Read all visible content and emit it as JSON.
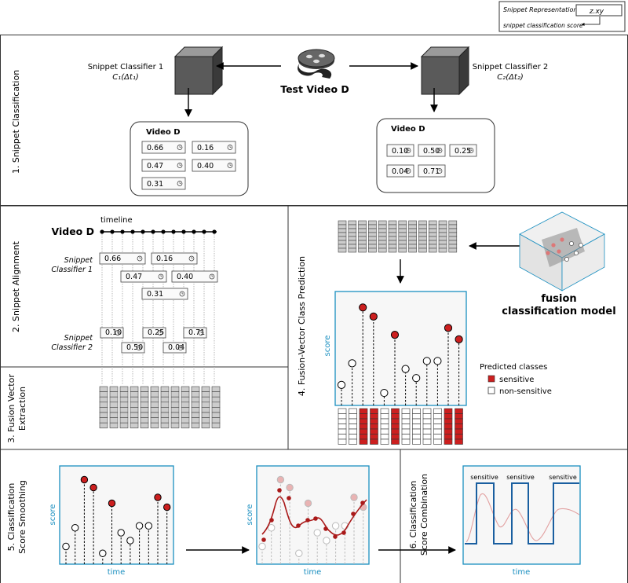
{
  "legend_key": {
    "title": "Snippet Representation:",
    "value": "z.xy",
    "caption": "snippet classification score"
  },
  "sections": {
    "s1": "1. Snippet Classification",
    "s2": "2. Snippet Alignment",
    "s3_line1": "3. Fusion Vector",
    "s3_line2": "Extraction",
    "s4": "4. Fusion-Vector Class Prediction",
    "s5_line1": "5. Classification",
    "s5_line2": "Score Smoothing",
    "s6_line1": "6. Classification",
    "s6_line2": "Score Combination"
  },
  "classifier1": {
    "name": "Snippet Classifier 1",
    "formula": "C₁(Δt₁)"
  },
  "classifier2": {
    "name": "Snippet Classifier 2",
    "formula": "C₂(Δt₂)"
  },
  "test_video": "Test Video D",
  "video_label": "Video D",
  "scores1": [
    "0.66",
    "0.16",
    "0.47",
    "0.40",
    "0.31"
  ],
  "scores2": [
    "0.10",
    "0.50",
    "0.25",
    "0.04",
    "0.71"
  ],
  "timeline_label": "timeline",
  "align_c1_line1": "Snippet",
  "align_c1_line2": "Classifier 1",
  "align_c2_line1": "Snippet",
  "align_c2_line2": "Classifier 2",
  "fusion_model_line1": "fusion",
  "fusion_model_line2": "classification model",
  "predicted": {
    "title": "Predicted classes",
    "sensitive": "sensitive",
    "non_sensitive": "non-sensitive"
  },
  "axis": {
    "score": "score",
    "time": "time"
  },
  "combination_labels": [
    "sensitive",
    "sensitive",
    "sensitive"
  ],
  "colors": {
    "accent": "#1a8fc0",
    "sensitive": "#cc1f1f",
    "border": "#333333",
    "cell": "#cccccc"
  },
  "lollipop_values": [
    0.18,
    0.37,
    0.86,
    0.78,
    0.11,
    0.62,
    0.32,
    0.24,
    0.39,
    0.39,
    0.68,
    0.58
  ],
  "predicted_classes": [
    "non-sensitive",
    "non-sensitive",
    "sensitive",
    "sensitive",
    "non-sensitive",
    "sensitive",
    "non-sensitive",
    "non-sensitive",
    "non-sensitive",
    "non-sensitive",
    "sensitive",
    "sensitive"
  ],
  "fusion_vector_count": 12
}
